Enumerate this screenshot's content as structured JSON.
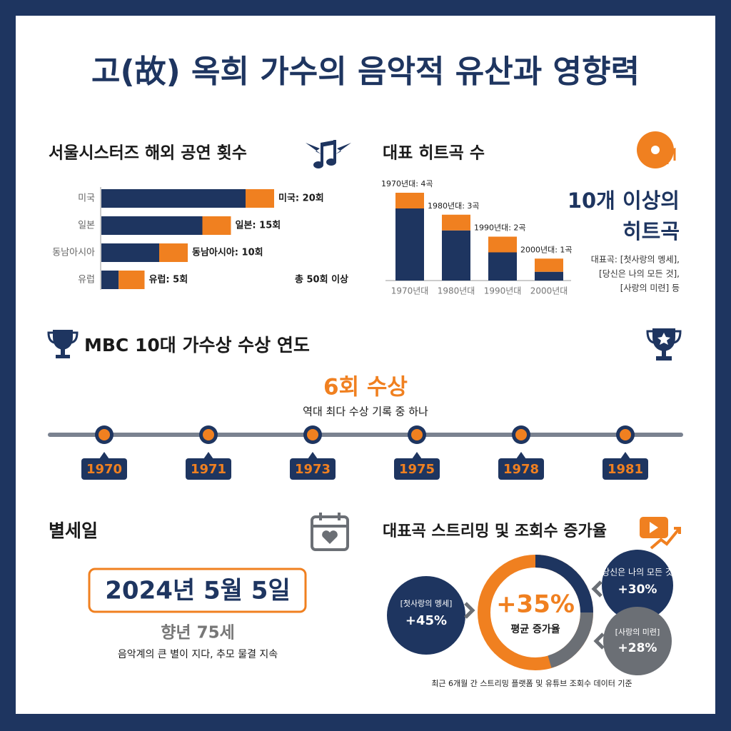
{
  "title": "고(故) 옥희 가수의 음악적 유산과 영향력",
  "chart_data": [
    {
      "type": "bar",
      "orientation": "horizontal",
      "title": "서울시스터즈 해외 공연 횟수",
      "categories": [
        "미국",
        "일본",
        "동남아시아",
        "유럽"
      ],
      "values": [
        20,
        15,
        10,
        5
      ],
      "value_labels": [
        "미국: 20회",
        "일본: 15회",
        "동남아시아: 10회",
        "유럽: 5회"
      ],
      "total_label": "총 50회 이상",
      "colors": [
        "#1e3560",
        "#f08020"
      ]
    },
    {
      "type": "bar",
      "orientation": "vertical",
      "title": "대표 히트곡 수",
      "categories": [
        "1970년대",
        "1980년대",
        "1990년대",
        "2000년대"
      ],
      "values": [
        4,
        3,
        2,
        1
      ],
      "value_labels": [
        "1970년대: 4곡",
        "1980년대: 3곡",
        "1990년대: 2곡",
        "2000년대: 1곡"
      ],
      "colors": [
        "#1e3560",
        "#f08020"
      ],
      "summary": [
        "10개 이상의",
        "히트곡"
      ],
      "summary_note": [
        "대표곡: [첫사랑의 멩세],",
        "[당신은 나의 모든 것],",
        "[사랑의 미련] 등"
      ]
    }
  ],
  "awards": {
    "title": "MBC 10대 가수상 수상 연도",
    "headline": "6회 수상",
    "caption": "역대 최다 수상 기록 중 하나",
    "years": [
      "1970",
      "1971",
      "1973",
      "1975",
      "1978",
      "1981"
    ]
  },
  "passing": {
    "title": "별세일",
    "date": "2024년 5월 5일",
    "age": "향년 75세",
    "caption": "음악계의 큰 별이 지다, 추모 물결 지속"
  },
  "streaming": {
    "title": "대표곡 스트리밍 및 조회수 증가율",
    "average": "+35%",
    "average_caption": "평균 증가율",
    "songs": [
      {
        "name": "[첫사랑의 멩세]",
        "growth": "+45%"
      },
      {
        "name": "[당신은 나의 모든 것]",
        "growth": "+30%"
      },
      {
        "name": "[사랑의 미련]",
        "growth": "+28%"
      }
    ],
    "note": "최근 6개월 간 스트리밍 플랫폼 및 유튜브 조회수 데이터 기준"
  }
}
